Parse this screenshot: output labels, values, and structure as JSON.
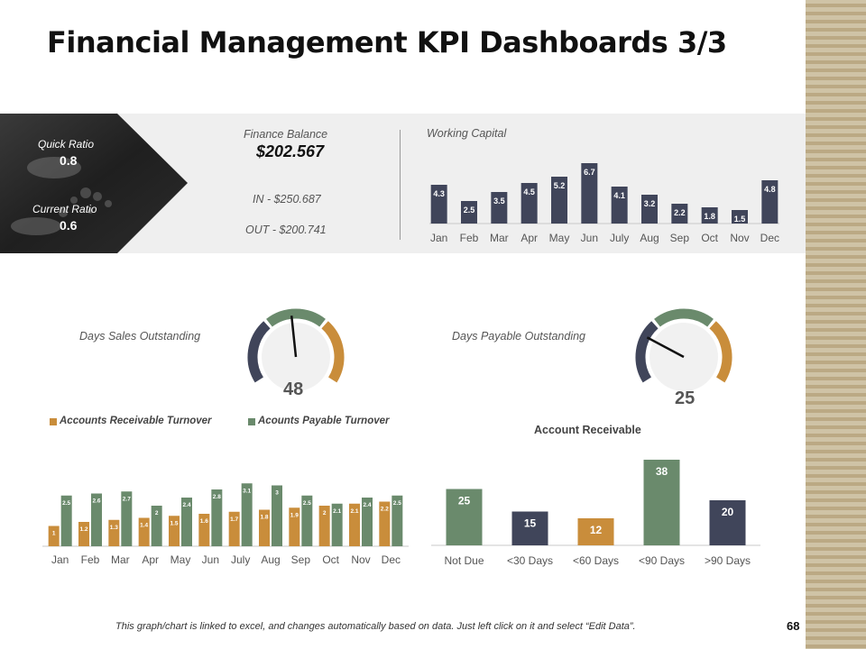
{
  "title": "Financial Management KPI Dashboards 3/3",
  "ratios": {
    "quick_label": "Quick Ratio",
    "quick_value": "0.8",
    "current_label": "Current Ratio",
    "current_value": "0.6"
  },
  "finance_balance": {
    "label": "Finance Balance",
    "value": "$202.567",
    "in": "IN - $250.687",
    "out": "OUT - $200.741"
  },
  "colors": {
    "navy": "#40455a",
    "green": "#6a8a6c",
    "gold": "#c98d3b",
    "band": "#efefef"
  },
  "icons": {
    "coins": "coin-stack-photo",
    "hands": "hands-coins-photo"
  },
  "chart_data": [
    {
      "type": "bar",
      "title": "Working Capital",
      "categories": [
        "Jan",
        "Feb",
        "Mar",
        "Apr",
        "May",
        "Jun",
        "July",
        "Aug",
        "Sep",
        "Oct",
        "Nov",
        "Dec"
      ],
      "values": [
        4.3,
        2.5,
        3.5,
        4.5,
        5.2,
        6.7,
        4.1,
        3.2,
        2.2,
        1.8,
        1.5,
        4.8
      ],
      "ylim": [
        0,
        7
      ],
      "xlabel": "",
      "ylabel": ""
    },
    {
      "type": "gauge",
      "title": "Days Sales Outstanding",
      "value": 48
    },
    {
      "type": "gauge",
      "title": "Days Payable Outstanding",
      "value": 25
    },
    {
      "type": "bar",
      "title": "",
      "categories": [
        "Jan",
        "Feb",
        "Mar",
        "Apr",
        "May",
        "Jun",
        "July",
        "Aug",
        "Sep",
        "Oct",
        "Nov",
        "Dec"
      ],
      "series": [
        {
          "name": "Accounts Receivable Turnover",
          "values": [
            1,
            1.2,
            1.3,
            1.4,
            1.5,
            1.6,
            1.7,
            1.8,
            1.9,
            2,
            2.1,
            2.2
          ]
        },
        {
          "name": "Acounts Payable Turnover",
          "values": [
            2.5,
            2.6,
            2.7,
            2,
            2.4,
            2.8,
            3.1,
            3,
            2.5,
            2.1,
            2.4,
            2.5
          ]
        }
      ],
      "legend": "top",
      "ylim": [
        0,
        3.2
      ]
    },
    {
      "type": "bar",
      "title": "Account Receivable",
      "categories": [
        "Not Due",
        "<30 Days",
        "<60 Days",
        "<90 Days",
        ">90 Days"
      ],
      "values": [
        25,
        15,
        12,
        38,
        20
      ],
      "ylim": [
        0,
        40
      ]
    }
  ],
  "footer": {
    "note": "This graph/chart is linked to excel, and changes automatically  based on data.  Just left click on it and select “Edit Data”.",
    "page_number": "68"
  }
}
